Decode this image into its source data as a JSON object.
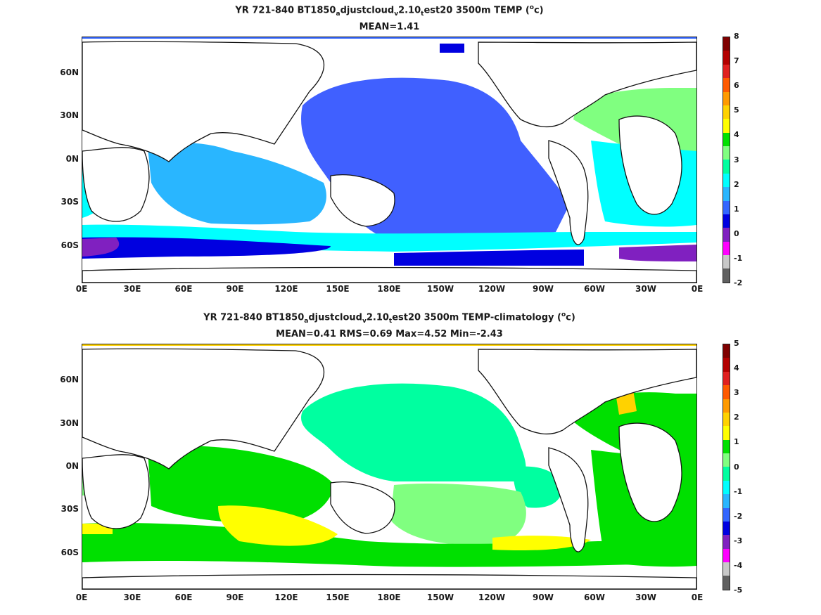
{
  "panels": [
    {
      "title_prefix": "YR 721-840 BT1850",
      "sub1": "a",
      "mid1": "djustcloud",
      "sub2": "v",
      "mid2": "2.10",
      "sub3": "t",
      "title_suffix": "est20 3500m TEMP (",
      "sup": "o",
      "unit_tail": "c)",
      "stats": "MEAN=1.41",
      "colorbar_labels": [
        "8",
        "7",
        "6",
        "5",
        "4",
        "3",
        "2",
        "1",
        "0",
        "-1",
        "-2"
      ],
      "colorbar_colors": [
        "#7f0000",
        "#b30000",
        "#e02020",
        "#ff5a00",
        "#ff9a00",
        "#ffd200",
        "#ffff00",
        "#00e000",
        "#80ff80",
        "#00ffa0",
        "#00ffff",
        "#29b6ff",
        "#3366ff",
        "#0000e0",
        "#8020c0",
        "#ff00ff",
        "#c8c8c8",
        "#606060"
      ]
    },
    {
      "title_prefix": "YR 721-840 BT1850",
      "sub1": "a",
      "mid1": "djustcloud",
      "sub2": "v",
      "mid2": "2.10",
      "sub3": "t",
      "title_suffix": "est20 3500m TEMP-climatology (",
      "sup": "o",
      "unit_tail": "c)",
      "stats": "MEAN=0.41   RMS=0.69   Max=4.52   Min=-2.43",
      "colorbar_labels": [
        "5",
        "4",
        "3",
        "2",
        "1",
        "0",
        "-1",
        "-2",
        "-3",
        "-4",
        "-5"
      ],
      "colorbar_colors": [
        "#7f0000",
        "#b30000",
        "#e02020",
        "#ff5a00",
        "#ff9a00",
        "#ffd200",
        "#ffff00",
        "#00e000",
        "#80ff80",
        "#00ffa0",
        "#00ffff",
        "#29b6ff",
        "#3366ff",
        "#0000e0",
        "#8020c0",
        "#ff00ff",
        "#c8c8c8",
        "#606060"
      ]
    }
  ],
  "lat_labels": [
    "60N",
    "30N",
    "0N",
    "30S",
    "60S"
  ],
  "lon_labels": [
    "0E",
    "30E",
    "60E",
    "90E",
    "120E",
    "150E",
    "180E",
    "150W",
    "120W",
    "90W",
    "60W",
    "30W",
    "0E"
  ]
}
